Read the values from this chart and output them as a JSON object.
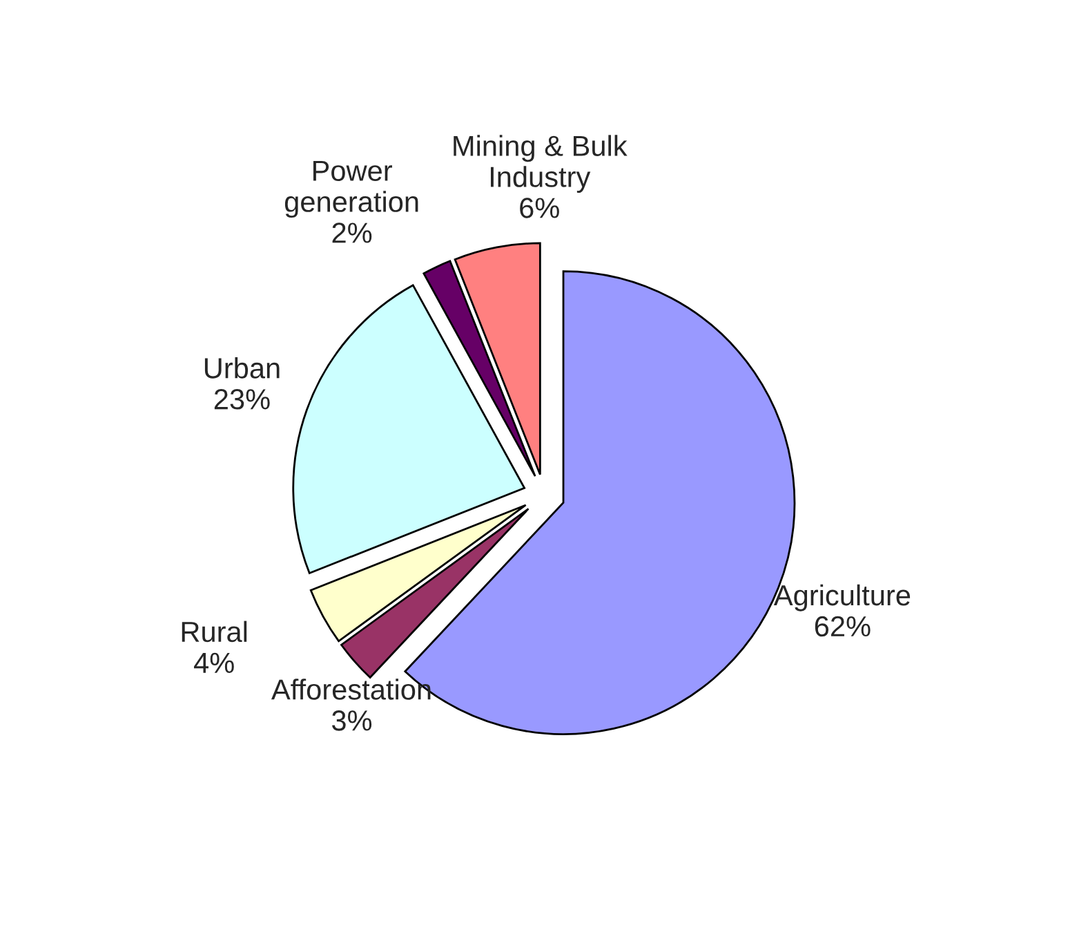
{
  "chart_data": {
    "type": "pie",
    "categories": [
      "Agriculture",
      "Afforestation",
      "Rural",
      "Urban",
      "Power generation",
      "Mining & Bulk Industry"
    ],
    "values": [
      62,
      3,
      4,
      23,
      2,
      6
    ],
    "value_labels": [
      "62%",
      "3%",
      "4%",
      "23%",
      "2%",
      "6%"
    ],
    "colors": [
      "#9999ff",
      "#993366",
      "#ffffcc",
      "#ccffff",
      "#660066",
      "#ff8080"
    ]
  }
}
